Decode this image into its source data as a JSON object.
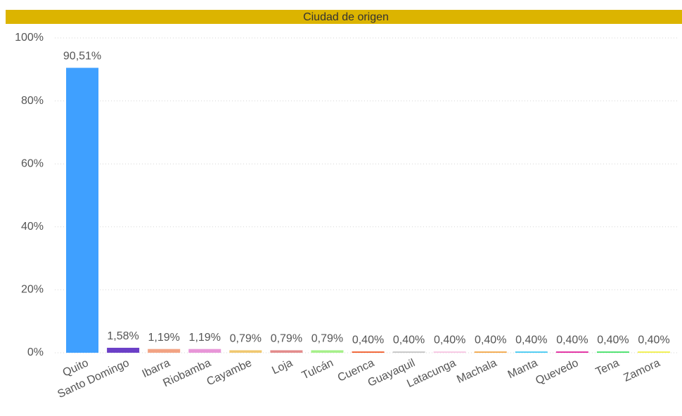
{
  "chart_data": {
    "type": "bar",
    "title": "Ciudad de origen",
    "categories": [
      "Quito",
      "Santo Domingo",
      "Ibarra",
      "Riobamba",
      "Cayambe",
      "Loja",
      "Tulcán",
      "Cuenca",
      "Guayaquil",
      "Latacunga",
      "Machala",
      "Manta",
      "Quevedo",
      "Tena",
      "Zamora"
    ],
    "values": [
      90.51,
      1.58,
      1.19,
      1.19,
      0.79,
      0.79,
      0.79,
      0.4,
      0.4,
      0.4,
      0.4,
      0.4,
      0.4,
      0.4,
      0.4
    ],
    "value_labels": [
      "90,51%",
      "1,58%",
      "1,19%",
      "1,19%",
      "0,79%",
      "0,79%",
      "0,79%",
      "0,40%",
      "0,40%",
      "0,40%",
      "0,40%",
      "0,40%",
      "0,40%",
      "0,40%",
      "0,40%"
    ],
    "colors": [
      "#3fa0ff",
      "#6b3fc7",
      "#f2a384",
      "#e896d8",
      "#f0c870",
      "#e38c8c",
      "#a6f08a",
      "#f05a28",
      "#c4c4c4",
      "#f7c4e2",
      "#f2a646",
      "#42c8f2",
      "#e0239c",
      "#42e066",
      "#f0ee46"
    ],
    "ylim": [
      0,
      100
    ],
    "yticks": [
      {
        "value": 0,
        "label": "0%"
      },
      {
        "value": 20,
        "label": "20%"
      },
      {
        "value": 40,
        "label": "40%"
      },
      {
        "value": 60,
        "label": "60%"
      },
      {
        "value": 80,
        "label": "80%"
      },
      {
        "value": 100,
        "label": "100%"
      }
    ],
    "grid": true
  }
}
